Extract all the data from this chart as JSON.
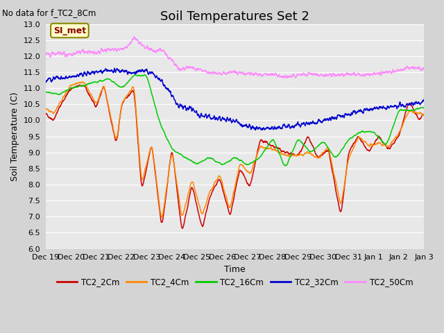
{
  "title": "Soil Temperatures Set 2",
  "subtitle": "No data for f_TC2_8Cm",
  "ylabel": "Soil Temperature (C)",
  "xlabel": "Time",
  "ylim": [
    6.0,
    13.0
  ],
  "yticks": [
    6.0,
    6.5,
    7.0,
    7.5,
    8.0,
    8.5,
    9.0,
    9.5,
    10.0,
    10.5,
    11.0,
    11.5,
    12.0,
    12.5,
    13.0
  ],
  "xtick_labels": [
    "Dec 19",
    "Dec 20",
    "Dec 21",
    "Dec 22",
    "Dec 23",
    "Dec 24",
    "Dec 25",
    "Dec 26",
    "Dec 27",
    "Dec 28",
    "Dec 29",
    "Dec 30",
    "Dec 31",
    "Jan 1",
    "Jan 2",
    "Jan 3"
  ],
  "legend_entries": [
    "TC2_2Cm",
    "TC2_4Cm",
    "TC2_16Cm",
    "TC2_32Cm",
    "TC2_50Cm"
  ],
  "line_colors": [
    "#cc0000",
    "#ff8800",
    "#00cc00",
    "#0000cc",
    "#ff88ff"
  ],
  "annotation_text": "SI_met",
  "annotation_box_facecolor": "#ffffcc",
  "annotation_box_edgecolor": "#888800",
  "background_color": "#e8e8e8",
  "plot_bg_color": "#e8e8e8",
  "grid_color": "#ffffff",
  "title_fontsize": 13,
  "label_fontsize": 9,
  "tick_fontsize": 8
}
